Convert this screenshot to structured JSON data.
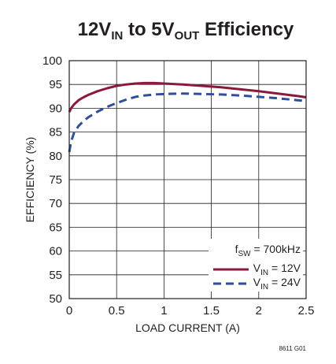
{
  "title": {
    "pre": "12V",
    "sub1": "IN",
    "mid": " to 5V",
    "sub2": "OUT",
    "post": " Efficiency"
  },
  "figure_id": "8611 G01",
  "legend": {
    "fsw": {
      "pre": "f",
      "sub": "SW",
      "post": " = 700kHz"
    },
    "series_labels": [
      {
        "pre": "V",
        "sub": "IN",
        "post": " = 12V"
      },
      {
        "pre": "V",
        "sub": "IN",
        "post": " = 24V"
      }
    ]
  },
  "colors": {
    "series_12v": "#8b1a3a",
    "series_24v": "#2e4f9e",
    "axis": "#231f20",
    "grid": "#231f20"
  },
  "chart_data": {
    "type": "line",
    "title": "12VIN to 5VOUT Efficiency",
    "xlabel": "LOAD CURRENT (A)",
    "ylabel": "EFFICIENCY (%)",
    "xlim": [
      0,
      2.5
    ],
    "ylim": [
      50,
      100
    ],
    "x_ticks": [
      "0",
      "0.5",
      "1",
      "1.5",
      "2",
      "2.5"
    ],
    "y_ticks": [
      "50",
      "55",
      "60",
      "65",
      "70",
      "75",
      "80",
      "85",
      "90",
      "95",
      "100"
    ],
    "grid": true,
    "legend_position": "bottom-right",
    "series": [
      {
        "name": "VIN = 12V",
        "style": "solid",
        "x": [
          0,
          0.02,
          0.05,
          0.1,
          0.15,
          0.2,
          0.3,
          0.4,
          0.5,
          0.6,
          0.7,
          0.8,
          0.9,
          1.0,
          1.1,
          1.2,
          1.4,
          1.6,
          1.8,
          2.0,
          2.2,
          2.4,
          2.5
        ],
        "y": [
          89.2,
          90.0,
          90.8,
          91.7,
          92.3,
          92.8,
          93.6,
          94.2,
          94.7,
          95.0,
          95.2,
          95.3,
          95.3,
          95.2,
          95.1,
          95.0,
          94.7,
          94.4,
          94.0,
          93.6,
          93.1,
          92.6,
          92.3
        ]
      },
      {
        "name": "VIN = 24V",
        "style": "dashed",
        "x": [
          0,
          0.02,
          0.05,
          0.1,
          0.15,
          0.2,
          0.3,
          0.4,
          0.5,
          0.6,
          0.7,
          0.8,
          0.9,
          1.0,
          1.2,
          1.4,
          1.6,
          1.8,
          2.0,
          2.2,
          2.4,
          2.5
        ],
        "y": [
          80.8,
          83.0,
          84.8,
          86.3,
          87.3,
          88.1,
          89.3,
          90.3,
          91.1,
          91.8,
          92.4,
          92.7,
          92.9,
          93.0,
          93.1,
          93.0,
          92.9,
          92.7,
          92.4,
          92.1,
          91.7,
          91.5
        ]
      }
    ]
  }
}
